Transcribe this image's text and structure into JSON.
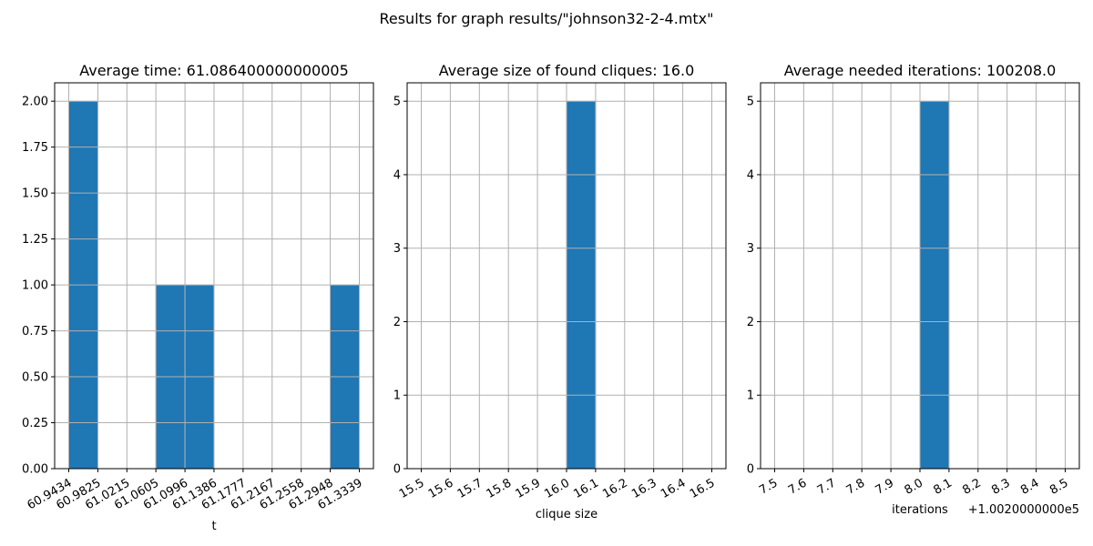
{
  "suptitle": "Results for graph results/\"johnson32-2-4.mtx\"",
  "chart_data": [
    {
      "type": "bar",
      "title": "Average time: 61.086400000000005",
      "xlabel": "t",
      "ylabel": "",
      "offset_label": "",
      "grid": true,
      "xlim": [
        60.9434,
        61.3339
      ],
      "ylim": [
        0,
        2.1
      ],
      "x_ticks": [
        "60.9434",
        "60.9825",
        "61.0215",
        "61.0605",
        "61.0996",
        "61.1386",
        "61.1777",
        "61.2167",
        "61.2558",
        "61.2948",
        "61.3339"
      ],
      "y_ticks": [
        "0.00",
        "0.25",
        "0.50",
        "0.75",
        "1.00",
        "1.25",
        "1.50",
        "1.75",
        "2.00"
      ],
      "bin_edges": [
        60.9434,
        60.9825,
        61.0215,
        61.0605,
        61.0996,
        61.1386,
        61.1777,
        61.2167,
        61.2558,
        61.2948,
        61.3339
      ],
      "values": [
        2,
        0,
        0,
        1,
        1,
        0,
        0,
        0,
        0,
        1
      ]
    },
    {
      "type": "bar",
      "title": "Average size of found cliques: 16.0",
      "xlabel": "clique size",
      "ylabel": "",
      "offset_label": "",
      "grid": true,
      "xlim": [
        15.5,
        16.5
      ],
      "ylim": [
        0,
        5.25
      ],
      "x_ticks": [
        "15.5",
        "15.6",
        "15.7",
        "15.8",
        "15.9",
        "16.0",
        "16.1",
        "16.2",
        "16.3",
        "16.4",
        "16.5"
      ],
      "y_ticks": [
        "0",
        "1",
        "2",
        "3",
        "4",
        "5"
      ],
      "bin_edges": [
        15.5,
        15.6,
        15.7,
        15.8,
        15.9,
        16.0,
        16.1,
        16.2,
        16.3,
        16.4,
        16.5
      ],
      "values": [
        0,
        0,
        0,
        0,
        0,
        5,
        0,
        0,
        0,
        0
      ]
    },
    {
      "type": "bar",
      "title": "Average needed iterations: 100208.0",
      "xlabel": "iterations",
      "ylabel": "",
      "offset_label": "+1.0020000000e5",
      "grid": true,
      "xlim": [
        7.5,
        8.5
      ],
      "ylim": [
        0,
        5.25
      ],
      "x_ticks": [
        "7.5",
        "7.6",
        "7.7",
        "7.8",
        "7.9",
        "8.0",
        "8.1",
        "8.2",
        "8.3",
        "8.4",
        "8.5"
      ],
      "y_ticks": [
        "0",
        "1",
        "2",
        "3",
        "4",
        "5"
      ],
      "bin_edges": [
        7.5,
        7.6,
        7.7,
        7.8,
        7.9,
        8.0,
        8.1,
        8.2,
        8.3,
        8.4,
        8.5
      ],
      "values": [
        0,
        0,
        0,
        0,
        0,
        5,
        0,
        0,
        0,
        0
      ]
    }
  ],
  "colors": {
    "bar": "#1f77b4",
    "grid": "#b0b0b0"
  }
}
